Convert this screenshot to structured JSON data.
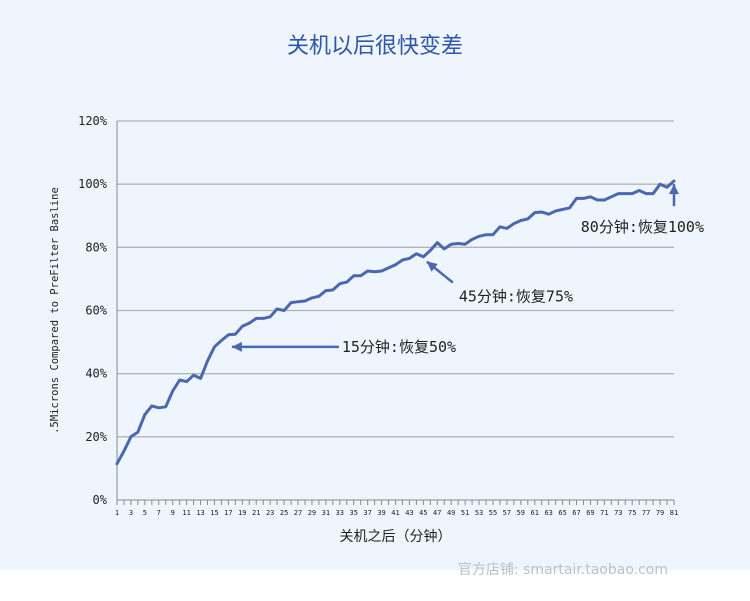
{
  "title": "关机以后很快变差",
  "watermark": "官方店铺: smartair.taobao.com",
  "colors": {
    "line": "#4a68b0",
    "title": "#2f56a8",
    "panel": "#eef5fc",
    "grid": "#b5b5b5",
    "arrow": "#4a68b0"
  },
  "chart_data": {
    "type": "line",
    "xlabel": "关机之后（分钟）",
    "ylabel": ".5Microns Compared to PreFilter Basline",
    "xlim": [
      1,
      81
    ],
    "ylim": [
      0,
      120
    ],
    "yticks": [
      0,
      20,
      40,
      60,
      80,
      100,
      120
    ],
    "ytick_labels": [
      "0%",
      "20%",
      "40%",
      "60%",
      "80%",
      "100%",
      "120%"
    ],
    "xtick_labels": [
      "1",
      "3",
      "5",
      "7",
      "9",
      "11",
      "13",
      "15",
      "17",
      "19",
      "21",
      "23",
      "25",
      "27",
      "29",
      "31",
      "33",
      "35",
      "37",
      "39",
      "41",
      "43",
      "45",
      "47",
      "49",
      "51",
      "53",
      "55",
      "57",
      "59",
      "61",
      "63",
      "65",
      "67",
      "69",
      "71",
      "73",
      "75",
      "77",
      "79",
      "81"
    ],
    "grid": true,
    "x": [
      1,
      2,
      3,
      4,
      5,
      6,
      7,
      8,
      9,
      10,
      11,
      12,
      13,
      14,
      15,
      16,
      17,
      18,
      19,
      20,
      21,
      22,
      23,
      24,
      25,
      26,
      27,
      28,
      29,
      30,
      31,
      32,
      33,
      34,
      35,
      36,
      37,
      38,
      39,
      40,
      41,
      42,
      43,
      44,
      45,
      46,
      47,
      48,
      49,
      50,
      51,
      52,
      53,
      54,
      55,
      56,
      57,
      58,
      59,
      60,
      61,
      62,
      63,
      64,
      65,
      66,
      67,
      68,
      69,
      70,
      71,
      72,
      73,
      74,
      75,
      76,
      77,
      78,
      79,
      80,
      81
    ],
    "y": [
      11.5,
      15.5,
      20,
      21.5,
      27,
      29.8,
      29.2,
      29.5,
      34.5,
      38,
      37.5,
      39.5,
      38.5,
      44,
      48.5,
      50.5,
      52.3,
      52.5,
      55,
      56,
      57.5,
      57.5,
      58,
      60.5,
      60,
      62.5,
      62.8,
      63,
      64,
      64.5,
      66.3,
      66.5,
      68.5,
      69,
      71,
      71,
      72.5,
      72.3,
      72.5,
      73.5,
      74.5,
      76,
      76.5,
      78,
      77,
      79,
      81.5,
      79.5,
      81,
      81.2,
      81,
      82.5,
      83.5,
      84,
      84,
      86.5,
      86,
      87.5,
      88.5,
      89,
      91,
      91.2,
      90.5,
      91.5,
      92,
      92.5,
      95.5,
      95.5,
      96,
      95,
      95,
      96,
      97,
      97,
      97,
      98,
      97,
      97,
      100,
      99,
      101
    ],
    "annotations": [
      {
        "text": "15分钟:恢复50%",
        "x": 17.5,
        "y": 48.5,
        "direction": "left"
      },
      {
        "text": "45分钟:恢复75%",
        "x": 45.5,
        "y": 75.5,
        "direction": "up-left"
      },
      {
        "text": "80分钟:恢复100%",
        "x": 81,
        "y": 100,
        "direction": "up"
      }
    ]
  }
}
